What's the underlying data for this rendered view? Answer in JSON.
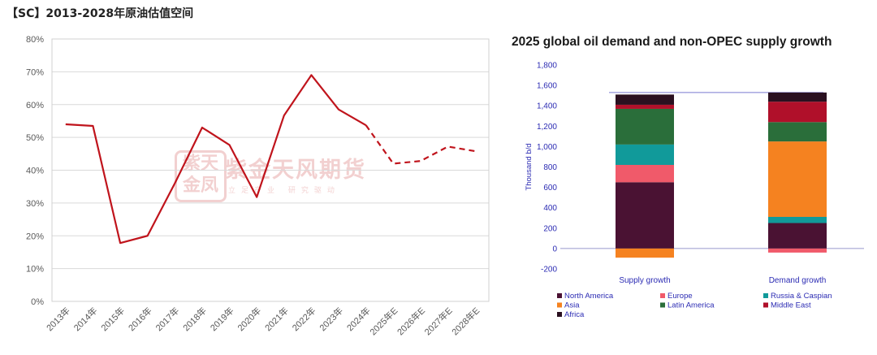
{
  "page": {
    "title": "【SC】2013-2028年原油估值空间"
  },
  "watermark": {
    "seal_text": "紫天金凤",
    "name": "紫金天风期货",
    "slogan": "立足产业 研究驱动"
  },
  "colors": {
    "line": "#c0141c",
    "grid": "#d9d9d9"
  },
  "chart_data": [
    {
      "type": "line",
      "title": "",
      "categories": [
        "2013年",
        "2014年",
        "2015年",
        "2016年",
        "2017年",
        "2018年",
        "2019年",
        "2020年",
        "2021年",
        "2022年",
        "2023年",
        "2024年",
        "2025年E",
        "2026年E",
        "2027年E",
        "2028年E"
      ],
      "values": [
        0.54,
        0.535,
        0.178,
        0.2,
        0.36,
        0.53,
        0.477,
        0.318,
        0.567,
        0.69,
        0.585,
        0.537,
        0.42,
        0.428,
        0.472,
        0.458
      ],
      "estimate_start_index": 12,
      "ylim": [
        0,
        0.8
      ],
      "yticks": [
        "0%",
        "10%",
        "20%",
        "30%",
        "40%",
        "50%",
        "60%",
        "70%",
        "80%"
      ],
      "grid": "horizontal",
      "legend": "none"
    },
    {
      "type": "bar",
      "stacked": true,
      "title": "2025 global oil demand and non-OPEC supply growth",
      "ylabel": "Thousand b/d",
      "categories": [
        "Supply growth",
        "Demand growth"
      ],
      "ylim": [
        -200,
        1800
      ],
      "yticks": [
        "-200",
        "0",
        "200",
        "400",
        "600",
        "800",
        "1,000",
        "1,200",
        "1,400",
        "1,600",
        "1,800"
      ],
      "total_line": 1530,
      "series": [
        {
          "name": "North America",
          "color": "#4a1233",
          "values": [
            650,
            250
          ]
        },
        {
          "name": "Europe",
          "color": "#f05a6a",
          "values": [
            170,
            -40
          ]
        },
        {
          "name": "Russia & Caspian",
          "color": "#119a9a",
          "values": [
            200,
            60
          ]
        },
        {
          "name": "Asia",
          "color": "#f58220",
          "values": [
            -90,
            740
          ]
        },
        {
          "name": "Latin America",
          "color": "#2a6e3a",
          "values": [
            350,
            190
          ]
        },
        {
          "name": "Middle East",
          "color": "#b0102a",
          "values": [
            40,
            200
          ]
        },
        {
          "name": "Africa",
          "color": "#2a1020",
          "values": [
            100,
            90
          ]
        }
      ],
      "legend": "bottom"
    }
  ]
}
